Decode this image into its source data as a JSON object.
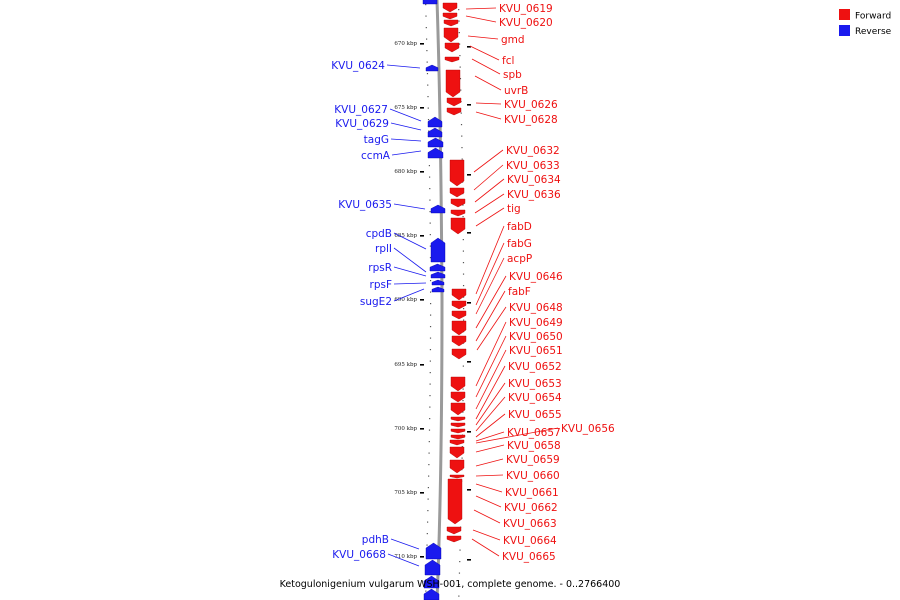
{
  "caption": "Ketogulonigenium vulgarum WSH-001, complete genome. - 0..2766400",
  "legend": {
    "forward": {
      "label": "Forward",
      "color": "#ee1111"
    },
    "reverse": {
      "label": "Reverse",
      "color": "#1a1aee"
    }
  },
  "scale_ticks": [
    "670 kbp",
    "675 kbp",
    "680 kbp",
    "685 kbp",
    "690 kbp",
    "695 kbp",
    "700 kbp",
    "705 kbp",
    "710 kbp"
  ],
  "forward_genes": [
    "KVU_0619",
    "KVU_0620",
    "gmd",
    "fcl",
    "spb",
    "uvrB",
    "KVU_0626",
    "KVU_0628",
    "KVU_0632",
    "KVU_0633",
    "KVU_0634",
    "KVU_0636",
    "tig",
    "fabD",
    "fabG",
    "acpP",
    "KVU_0646",
    "fabF",
    "KVU_0648",
    "KVU_0649",
    "KVU_0650",
    "KVU_0651",
    "KVU_0652",
    "KVU_0653",
    "KVU_0654",
    "KVU_0655",
    "KVU_0657",
    "KVU_0656",
    "KVU_0658",
    "KVU_0659",
    "KVU_0660",
    "KVU_0661",
    "KVU_0662",
    "KVU_0663",
    "KVU_0664",
    "KVU_0665"
  ],
  "reverse_genes": [
    "KVU_0624",
    "KVU_0627",
    "KVU_0629",
    "tagG",
    "ccmA",
    "KVU_0635",
    "cpdB",
    "rplI",
    "rpsR",
    "rpsF",
    "sugE2",
    "pdhB",
    "KVU_0668"
  ]
}
